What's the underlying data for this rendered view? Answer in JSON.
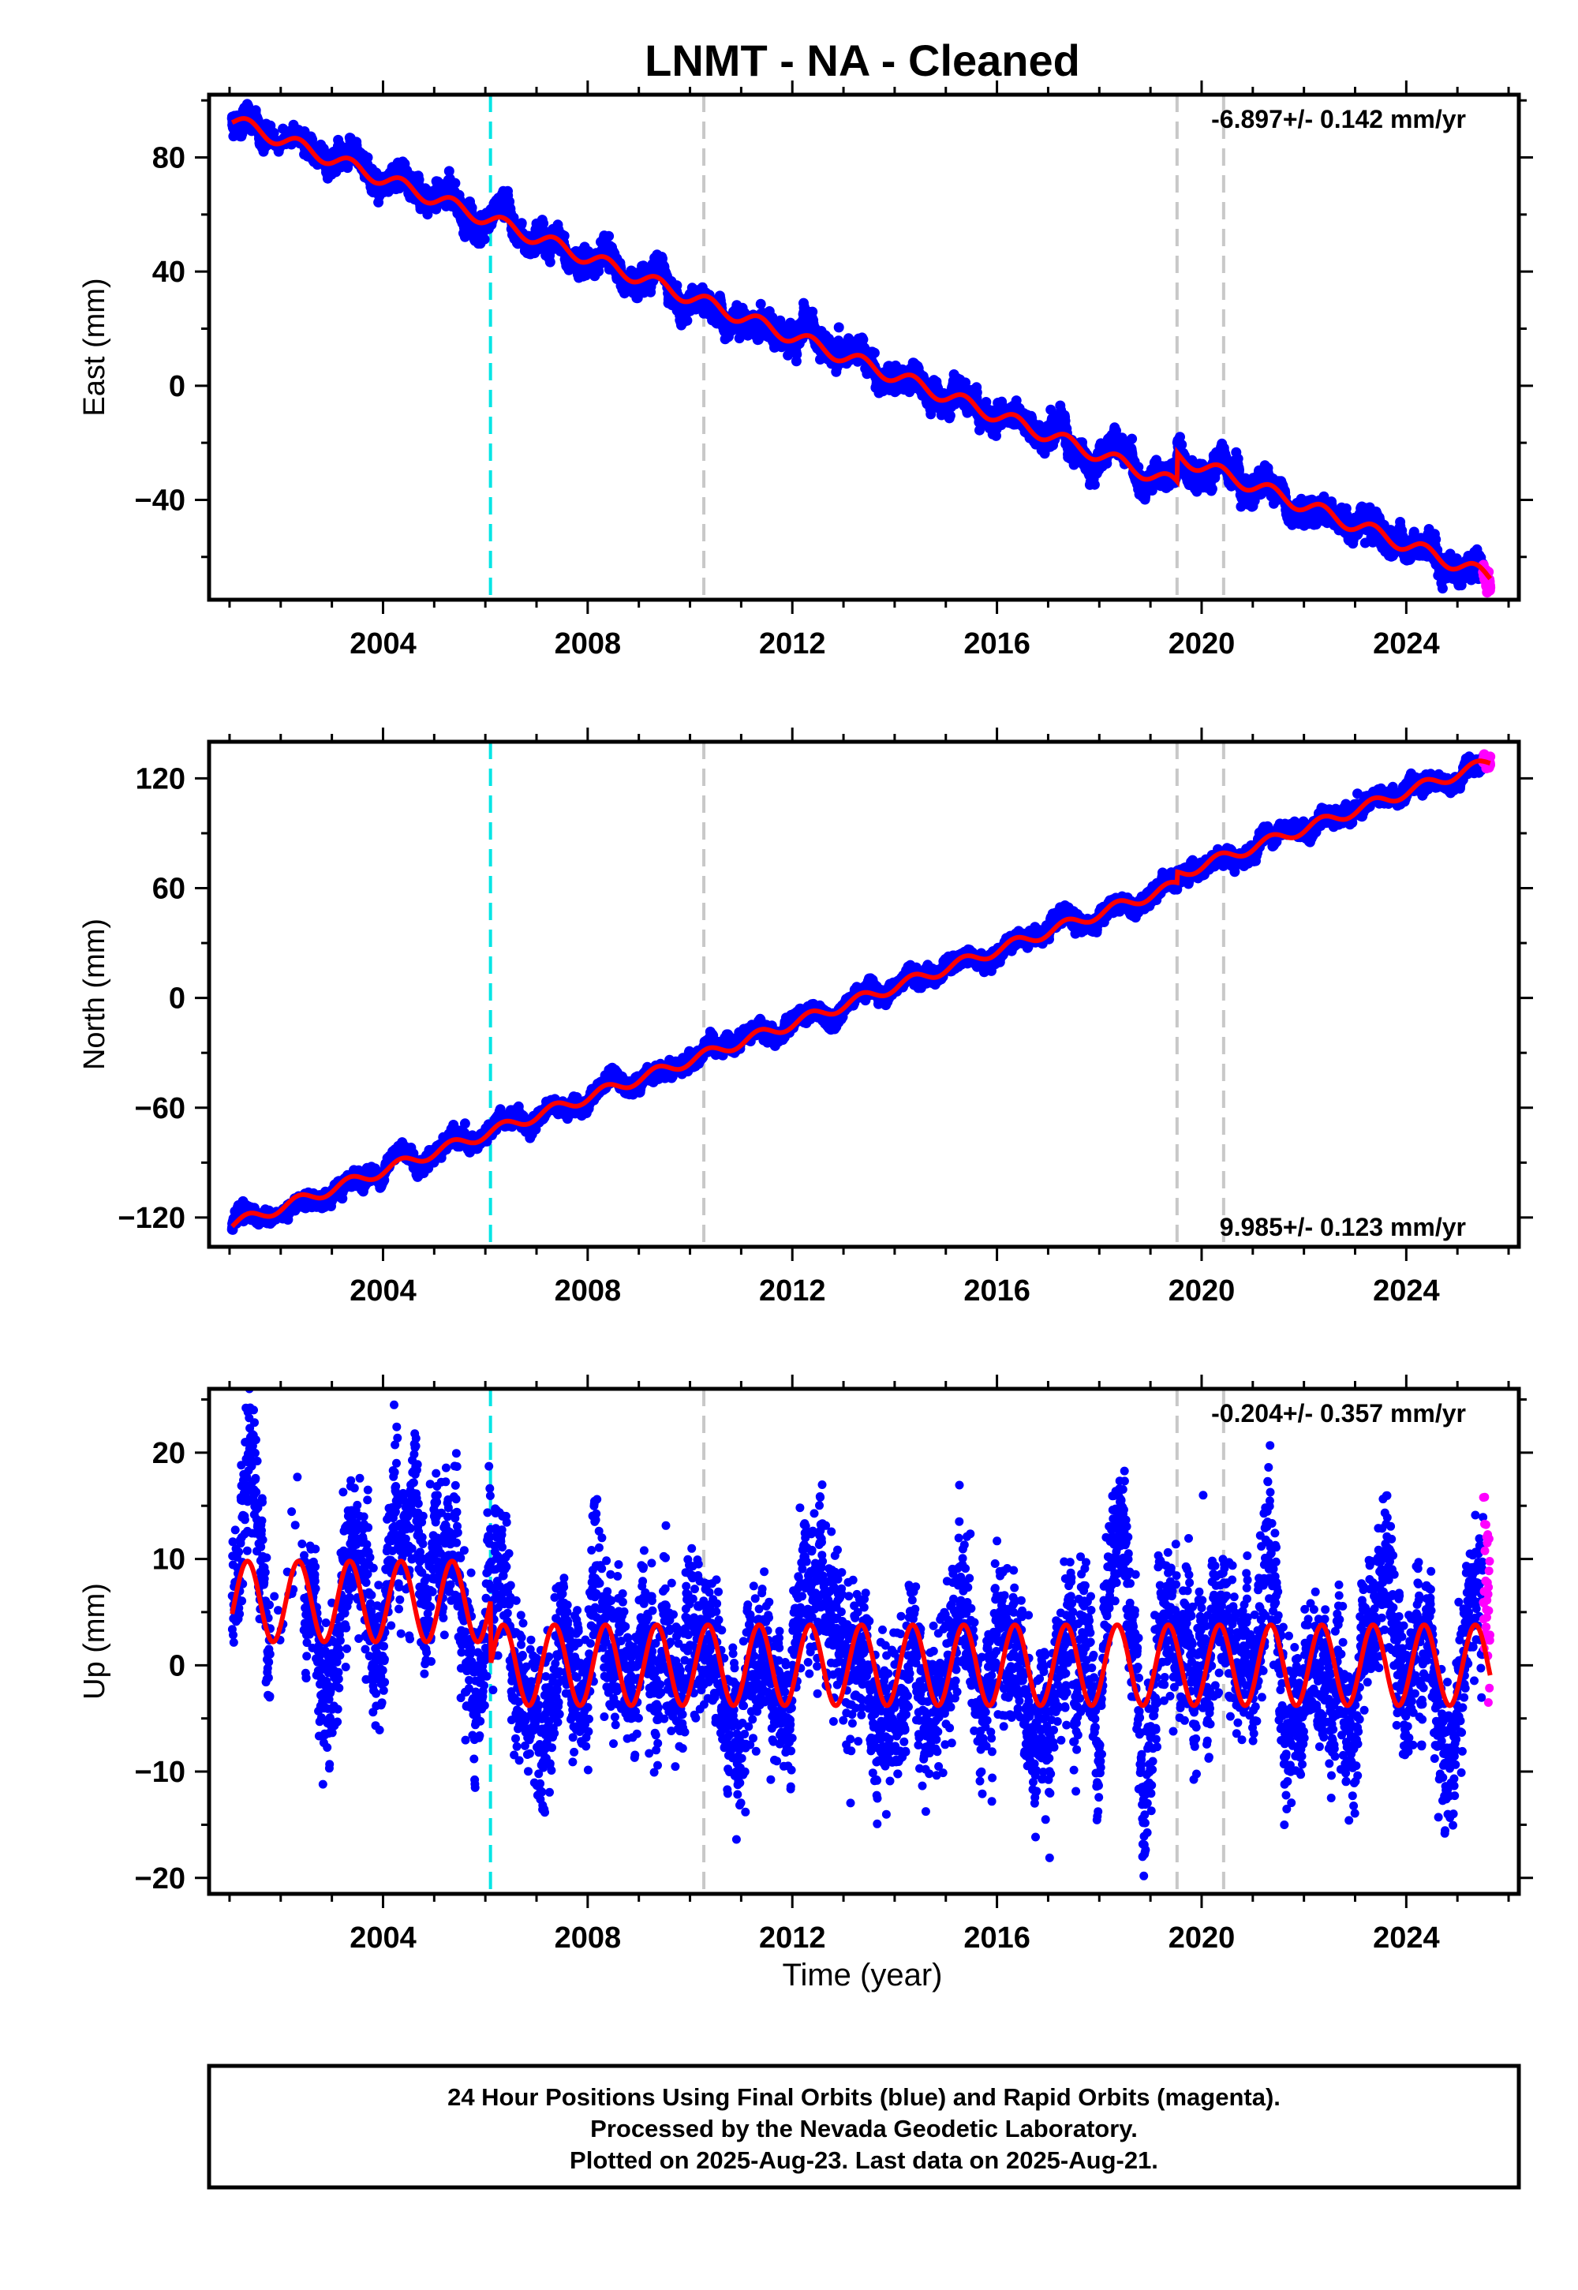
{
  "title": "LNMT  - NA - Cleaned",
  "xlabel": "Time (year)",
  "x_ticks": [
    2004,
    2008,
    2012,
    2016,
    2020,
    2024
  ],
  "xlim": [
    2000.6,
    2026.2
  ],
  "vlines": {
    "cyan": [
      2006.1
    ],
    "gray": [
      2010.27,
      2019.52,
      2020.43
    ]
  },
  "colors": {
    "final": "#0000ff",
    "rapid": "#ff00ff",
    "model": "#ff0000",
    "cyan": "#00e5e5",
    "gray": "#c8c8c8"
  },
  "chart_data": [
    {
      "type": "scatter",
      "component": "east",
      "ylabel": "East (mm)",
      "y_ticks": [
        80,
        40,
        0,
        -40
      ],
      "ylim": [
        -75,
        102
      ],
      "rate": "-6.897+/- 0.142 mm/yr",
      "rate_position": "top-right",
      "start": 2001.05,
      "end": 2025.64,
      "start_value": 93,
      "end_value": -67,
      "annual_amplitude": 2.5,
      "noise": 2.3,
      "offsets": [
        {
          "year": 2019.52,
          "step": 10
        }
      ],
      "series": [
        {
          "name": "Final Orbits (blue)",
          "x_range": [
            2001.05,
            2025.5
          ]
        },
        {
          "name": "Rapid Orbits (magenta)",
          "x_range": [
            2025.5,
            2025.64
          ]
        }
      ]
    },
    {
      "type": "scatter",
      "component": "north",
      "ylabel": "North (mm)",
      "y_ticks": [
        120,
        60,
        0,
        -60,
        -120
      ],
      "ylim": [
        -136,
        140
      ],
      "rate": "9.985+/- 0.123 mm/yr",
      "rate_position": "bottom-right",
      "start": 2001.05,
      "end": 2025.64,
      "start_value": -124,
      "end_value": 129,
      "annual_amplitude": 3.0,
      "noise": 2.2,
      "offsets": [
        {
          "year": 2019.52,
          "step": 6
        }
      ],
      "series": [
        {
          "name": "Final Orbits (blue)",
          "x_range": [
            2001.05,
            2025.5
          ]
        },
        {
          "name": "Rapid Orbits (magenta)",
          "x_range": [
            2025.5,
            2025.64
          ]
        }
      ]
    },
    {
      "type": "scatter",
      "component": "up",
      "ylabel": "Up (mm)",
      "y_ticks": [
        20,
        10,
        0,
        -10,
        -20
      ],
      "ylim": [
        -21.5,
        26
      ],
      "rate": "-0.204+/- 0.357 mm/yr",
      "rate_position": "top-right",
      "start": 2001.05,
      "end": 2025.64,
      "means": [
        {
          "from": 2001.05,
          "to": 2006.1,
          "value": 6
        },
        {
          "from": 2006.1,
          "to": 2025.64,
          "value": 0
        }
      ],
      "annual_amplitude": 3.8,
      "noise": 4.0,
      "series": [
        {
          "name": "Final Orbits (blue)",
          "x_range": [
            2001.05,
            2025.5
          ]
        },
        {
          "name": "Rapid Orbits (magenta)",
          "x_range": [
            2025.5,
            2025.64
          ]
        }
      ]
    }
  ],
  "footer": {
    "line1": "24 Hour Positions Using Final Orbits (blue) and Rapid Orbits (magenta).",
    "line2": "Processed by the Nevada Geodetic Laboratory.",
    "line3": "Plotted on 2025-Aug-23. Last data on 2025-Aug-21."
  }
}
